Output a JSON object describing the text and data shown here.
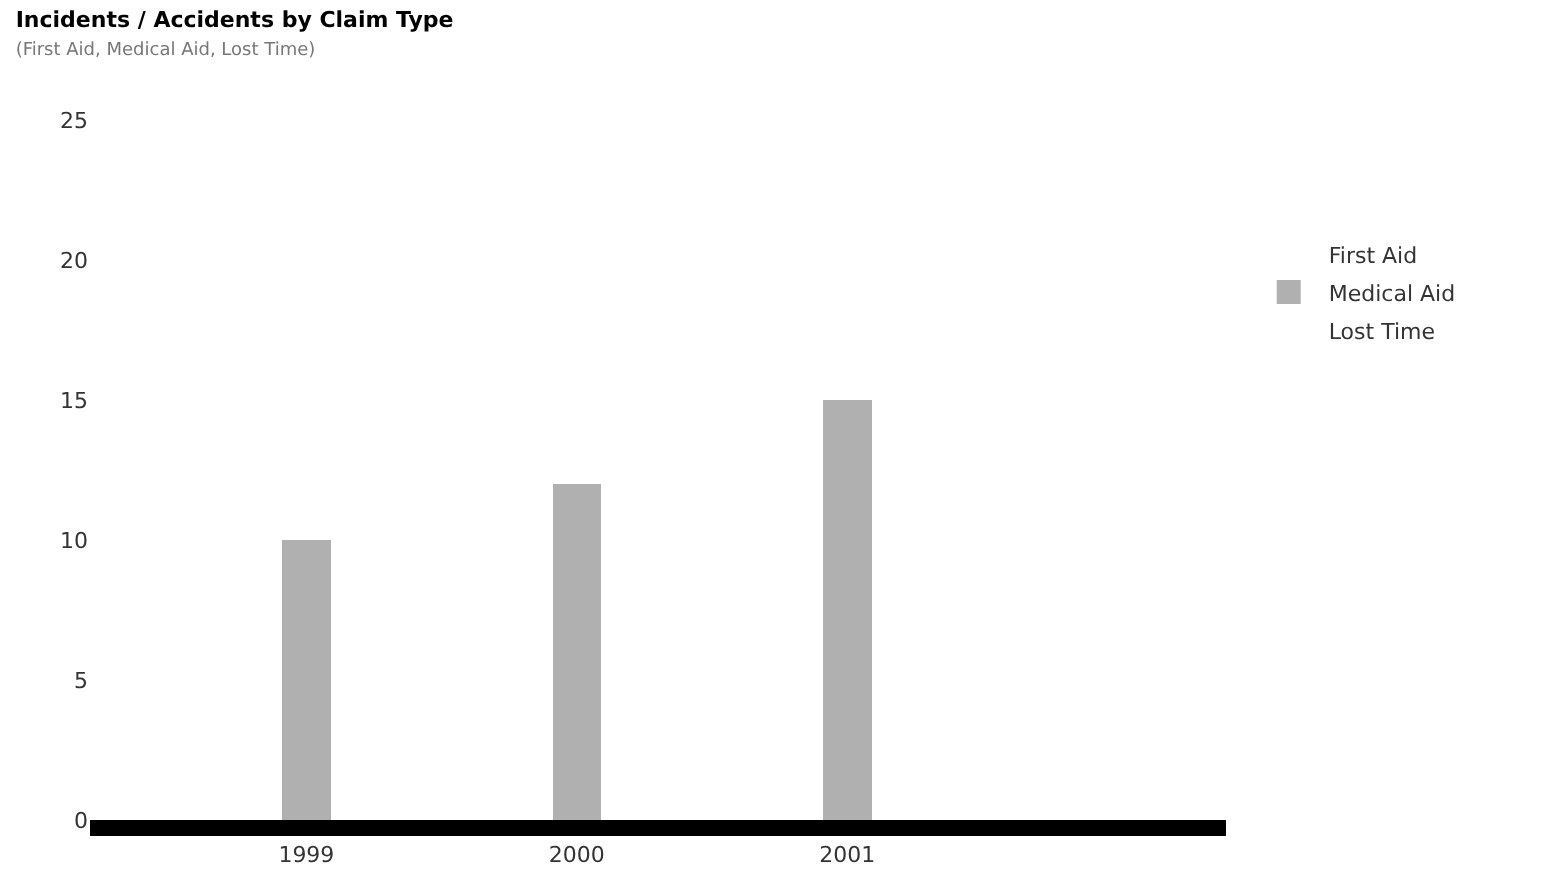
{
  "chart_data": {
    "type": "bar",
    "title": "Incidents / Accidents by Claim Type",
    "subtitle": "(First Aid, Medical Aid, Lost Time)",
    "categories": [
      "1999",
      "2000",
      "2001"
    ],
    "series": [
      {
        "name": "First Aid",
        "values": [
          0,
          0,
          0
        ]
      },
      {
        "name": "Medical Aid",
        "color": "#b0b0b0",
        "values": [
          10,
          12,
          15
        ]
      },
      {
        "name": "Lost Time",
        "values": [
          0,
          0,
          0
        ]
      }
    ],
    "stacked": true,
    "ylim": [
      0,
      25
    ],
    "yticks": [
      0,
      5,
      10,
      15,
      20,
      25
    ],
    "legend": "top right"
  }
}
